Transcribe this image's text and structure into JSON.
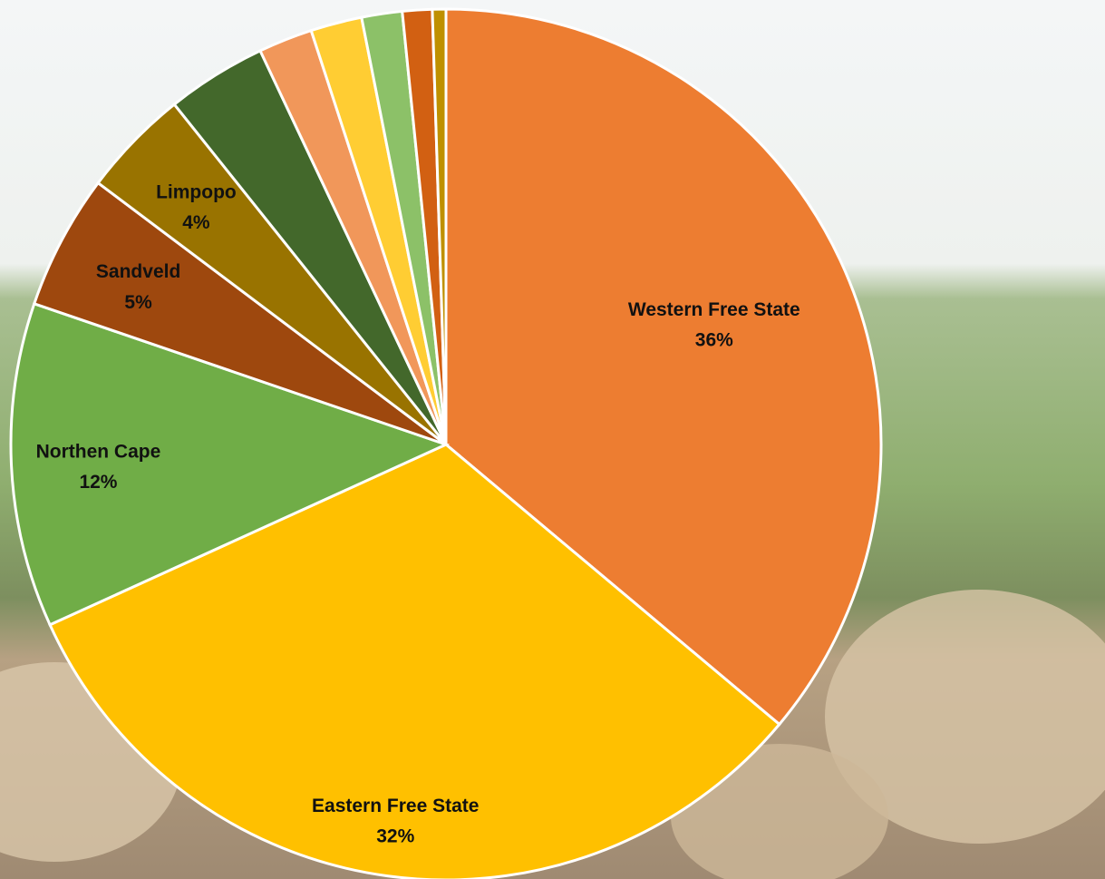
{
  "chart_data": {
    "type": "pie",
    "categories": [
      "Western Free State",
      "Eastern Free State",
      "Northen Cape",
      "Sandveld",
      "Limpopo",
      null,
      null,
      null,
      null,
      null,
      null
    ],
    "values": [
      36,
      32,
      12,
      5,
      4,
      3.7,
      2,
      1.9,
      1.5,
      1.1,
      0.5
    ],
    "value_labels": [
      "36%",
      "32%",
      "12%",
      "5%",
      "4%",
      null,
      null,
      null,
      null,
      null,
      null
    ],
    "colors": [
      "#ED7D31",
      "#FFC000",
      "#70AD47",
      "#9E480E",
      "#997300",
      "#43682B",
      "#F1975A",
      "#FFCD33",
      "#8CC168",
      "#D26012",
      "#BF9000"
    ]
  }
}
